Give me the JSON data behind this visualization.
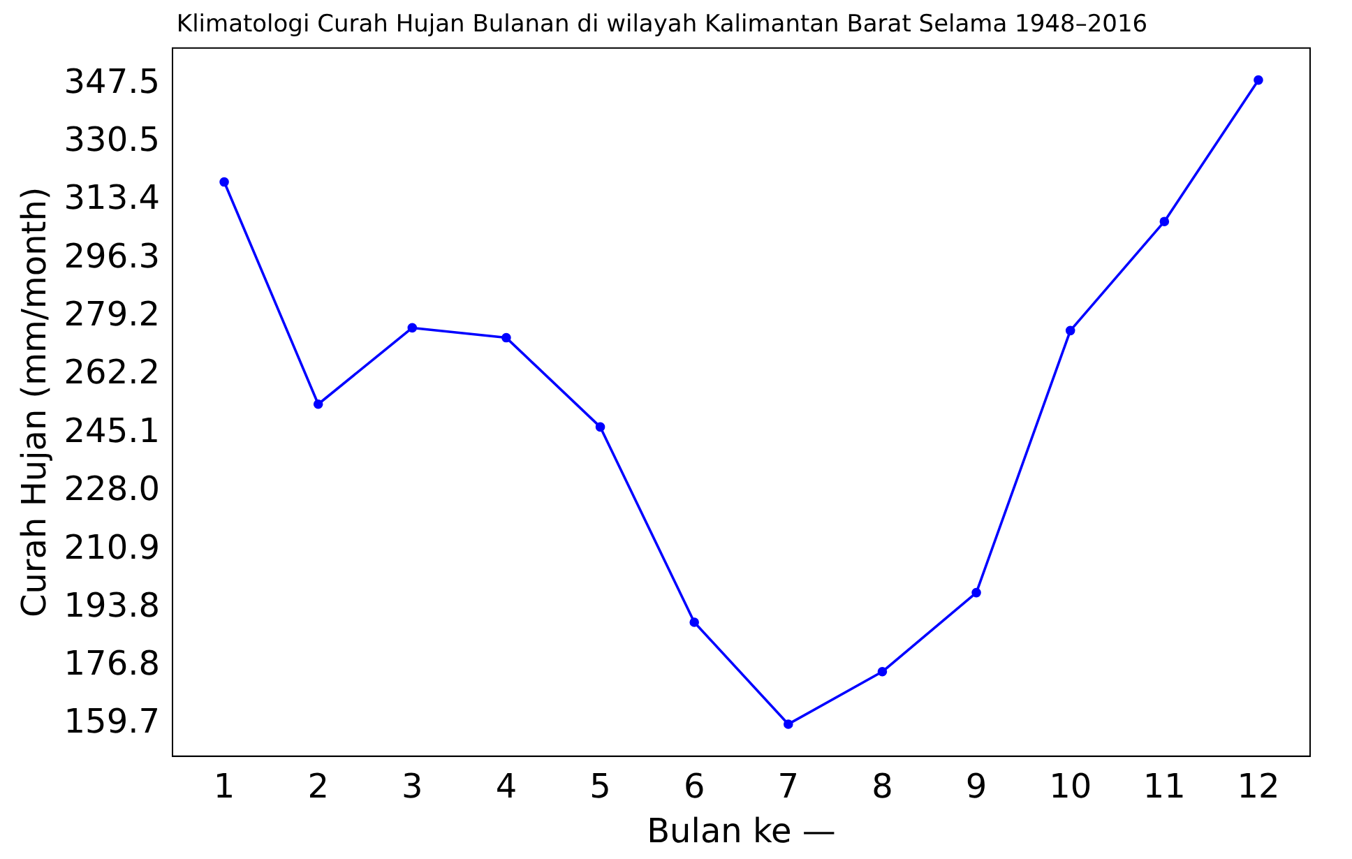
{
  "chart_data": {
    "type": "line",
    "title": "Klimatologi Curah Hujan Bulanan di wilayah Kalimantan Barat Selama 1948–2016",
    "xlabel": "Bulan ke —",
    "ylabel": "Curah Hujan (mm/month)",
    "x": [
      1,
      2,
      3,
      4,
      5,
      6,
      7,
      8,
      9,
      10,
      11,
      12
    ],
    "series": [
      {
        "color": "#0000ff",
        "values": [
          318.8,
          253.6,
          276.0,
          273.1,
          246.9,
          189.6,
          159.7,
          175.1,
          198.3,
          275.2,
          307.2,
          348.7
        ]
      }
    ],
    "xlim": [
      0.45,
      12.55
    ],
    "xticks": [
      1,
      2,
      3,
      4,
      5,
      6,
      7,
      8,
      9,
      10,
      11,
      12
    ],
    "ylim": [
      150.3,
      358.1
    ],
    "yticks": [
      159.7,
      176.8,
      193.8,
      210.9,
      {
        "value": 228,
        "label": "228.0"
      },
      245.1,
      262.2,
      279.2,
      296.3,
      313.4,
      330.5,
      347.5
    ],
    "marker": "circle",
    "line_style": "solid",
    "grid": false,
    "legend": false
  }
}
